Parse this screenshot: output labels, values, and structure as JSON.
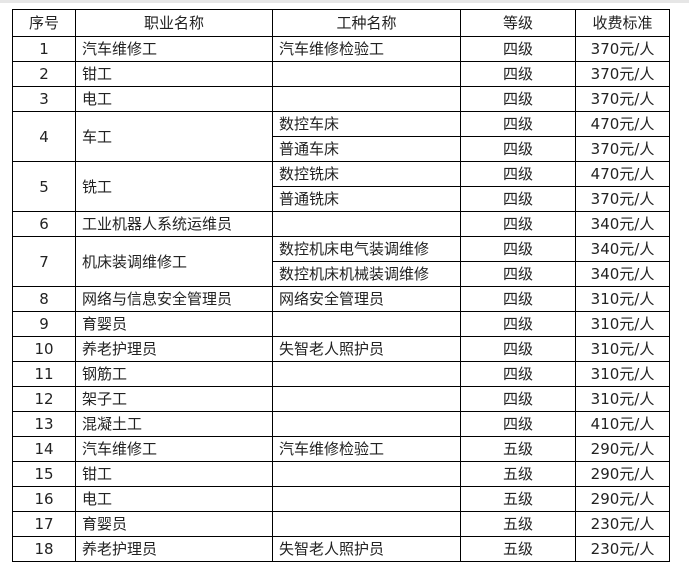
{
  "headers": [
    "序号",
    "职业名称",
    "工种名称",
    "等级",
    "收费标准"
  ],
  "rows": [
    {
      "no": "1",
      "job": "汽车维修工",
      "subs": [
        {
          "type": "汽车维修检验工",
          "level": "四级",
          "fee": "370元/人"
        }
      ]
    },
    {
      "no": "2",
      "job": "钳工",
      "subs": [
        {
          "type": "",
          "level": "四级",
          "fee": "370元/人"
        }
      ]
    },
    {
      "no": "3",
      "job": "电工",
      "subs": [
        {
          "type": "",
          "level": "四级",
          "fee": "370元/人"
        }
      ]
    },
    {
      "no": "4",
      "job": "车工",
      "subs": [
        {
          "type": "数控车床",
          "level": "四级",
          "fee": "470元/人"
        },
        {
          "type": "普通车床",
          "level": "四级",
          "fee": "370元/人"
        }
      ]
    },
    {
      "no": "5",
      "job": "铣工",
      "subs": [
        {
          "type": "数控铣床",
          "level": "四级",
          "fee": "470元/人"
        },
        {
          "type": "普通铣床",
          "level": "四级",
          "fee": "370元/人"
        }
      ]
    },
    {
      "no": "6",
      "job": "工业机器人系统运维员",
      "subs": [
        {
          "type": "",
          "level": "四级",
          "fee": "340元/人"
        }
      ]
    },
    {
      "no": "7",
      "job": "机床装调维修工",
      "subs": [
        {
          "type": "数控机床电气装调维修",
          "level": "四级",
          "fee": "340元/人"
        },
        {
          "type": "数控机床机械装调维修",
          "level": "四级",
          "fee": "340元/人"
        }
      ]
    },
    {
      "no": "8",
      "job": "网络与信息安全管理员",
      "subs": [
        {
          "type": "网络安全管理员",
          "level": "四级",
          "fee": "310元/人"
        }
      ]
    },
    {
      "no": "9",
      "job": "育婴员",
      "subs": [
        {
          "type": "",
          "level": "四级",
          "fee": "310元/人"
        }
      ]
    },
    {
      "no": "10",
      "job": "养老护理员",
      "subs": [
        {
          "type": "失智老人照护员",
          "level": "四级",
          "fee": "310元/人"
        }
      ]
    },
    {
      "no": "11",
      "job": "钢筋工",
      "subs": [
        {
          "type": "",
          "level": "四级",
          "fee": "310元/人"
        }
      ]
    },
    {
      "no": "12",
      "job": "架子工",
      "subs": [
        {
          "type": "",
          "level": "四级",
          "fee": "310元/人"
        }
      ]
    },
    {
      "no": "13",
      "job": "混凝土工",
      "subs": [
        {
          "type": "",
          "level": "四级",
          "fee": "410元/人"
        }
      ]
    },
    {
      "no": "14",
      "job": "汽车维修工",
      "subs": [
        {
          "type": "汽车维修检验工",
          "level": "五级",
          "fee": "290元/人"
        }
      ]
    },
    {
      "no": "15",
      "job": "钳工",
      "subs": [
        {
          "type": "",
          "level": "五级",
          "fee": "290元/人"
        }
      ]
    },
    {
      "no": "16",
      "job": "电工",
      "subs": [
        {
          "type": "",
          "level": "五级",
          "fee": "290元/人"
        }
      ]
    },
    {
      "no": "17",
      "job": "育婴员",
      "subs": [
        {
          "type": "",
          "level": "五级",
          "fee": "230元/人"
        }
      ]
    },
    {
      "no": "18",
      "job": "养老护理员",
      "subs": [
        {
          "type": "失智老人照护员",
          "level": "五级",
          "fee": "230元/人"
        }
      ]
    }
  ]
}
